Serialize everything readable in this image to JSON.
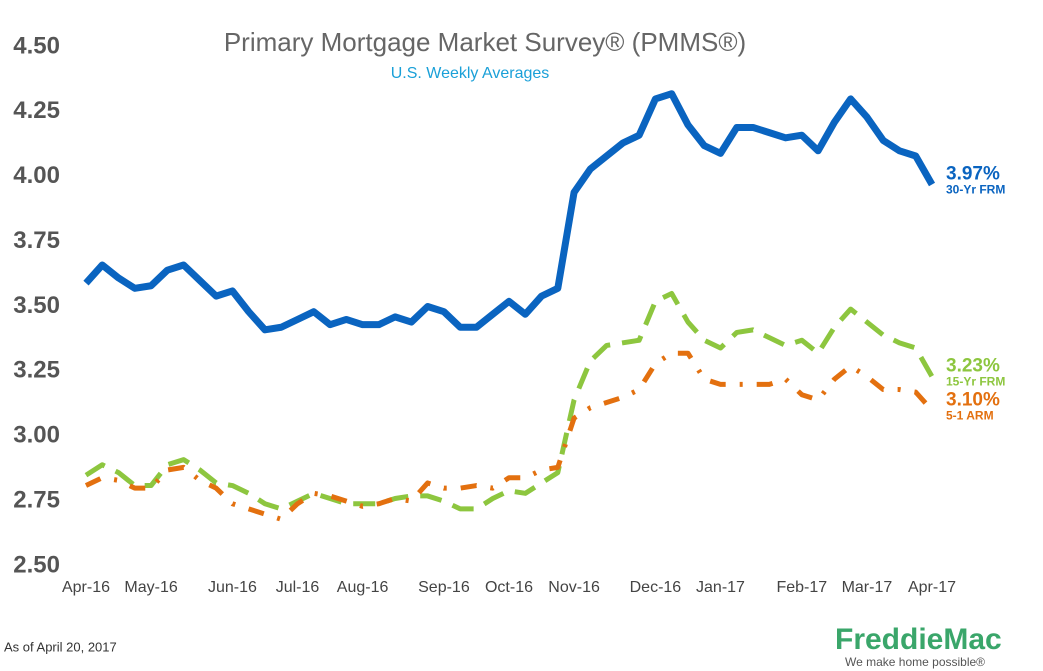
{
  "chart_data": {
    "type": "line",
    "title": "Primary Mortgage Market Survey® (PMMS®)",
    "subtitle": "U.S. Weekly Averages",
    "footnote": "As of April 20, 2017",
    "logo": "FreddieMac",
    "tagline": "We make home possible®",
    "categories": [
      "Apr-16",
      null,
      null,
      null,
      "May-16",
      null,
      null,
      null,
      null,
      "Jun-16",
      null,
      null,
      null,
      "Jul-16",
      null,
      null,
      null,
      "Aug-16",
      null,
      null,
      null,
      null,
      "Sep-16",
      null,
      null,
      null,
      "Oct-16",
      null,
      null,
      null,
      "Nov-16",
      null,
      null,
      null,
      null,
      "Dec-16",
      null,
      null,
      null,
      "Jan-17",
      null,
      null,
      null,
      null,
      "Feb-17",
      null,
      null,
      null,
      "Mar-17",
      null,
      null,
      null,
      "Apr-17"
    ],
    "ylim": [
      2.5,
      4.5
    ],
    "yticks": [
      {
        "value": 2.5,
        "label": "2.50"
      },
      {
        "value": 2.75,
        "label": "2.75"
      },
      {
        "value": 3,
        "label": "3.00"
      },
      {
        "value": 3.25,
        "label": "3.25"
      },
      {
        "value": 3.5,
        "label": "3.50"
      },
      {
        "value": 3.75,
        "label": "3.75"
      },
      {
        "value": 4,
        "label": "4.00"
      },
      {
        "value": 4.25,
        "label": "4.25"
      },
      {
        "value": 4.5,
        "label": "4.50"
      }
    ],
    "series": [
      {
        "name": "30-Yr FRM",
        "color": "#0a64c0",
        "style": "solid",
        "values": [
          3.59,
          3.66,
          3.61,
          3.57,
          3.58,
          3.64,
          3.66,
          3.6,
          3.54,
          3.56,
          3.48,
          3.41,
          3.42,
          3.45,
          3.48,
          3.43,
          3.45,
          3.43,
          3.43,
          3.46,
          3.44,
          3.5,
          3.48,
          3.42,
          3.42,
          3.47,
          3.52,
          3.47,
          3.54,
          3.57,
          3.94,
          4.03,
          4.08,
          4.13,
          4.16,
          4.3,
          4.32,
          4.2,
          4.12,
          4.09,
          4.19,
          4.19,
          4.17,
          4.15,
          4.16,
          4.1,
          4.21,
          4.3,
          4.23,
          4.14,
          4.1,
          4.08,
          3.97
        ],
        "value_labels": [
          null,
          null,
          null,
          null,
          null,
          null,
          null,
          null,
          null,
          null,
          null,
          null,
          null,
          null,
          null,
          null,
          null,
          null,
          null,
          null,
          null,
          null,
          null,
          null,
          null,
          null,
          null,
          null,
          null,
          null,
          null,
          null,
          null,
          null,
          null,
          null,
          null,
          null,
          null,
          null,
          null,
          null,
          null,
          null,
          null,
          null,
          null,
          null,
          null,
          null,
          null,
          null,
          "3.97%"
        ]
      },
      {
        "name": "15-Yr FRM",
        "color": "#8dc63f",
        "style": "dashed",
        "values": [
          2.85,
          2.89,
          2.86,
          2.81,
          2.81,
          2.89,
          2.91,
          2.87,
          2.82,
          2.81,
          2.78,
          2.74,
          2.72,
          2.75,
          2.78,
          2.76,
          2.74,
          2.74,
          2.74,
          2.76,
          2.77,
          2.77,
          2.75,
          2.72,
          2.72,
          2.76,
          2.79,
          2.78,
          2.82,
          2.86,
          3.14,
          3.29,
          3.35,
          3.36,
          3.37,
          3.52,
          3.55,
          3.44,
          3.37,
          3.34,
          3.4,
          3.41,
          3.38,
          3.35,
          3.37,
          3.32,
          3.42,
          3.49,
          3.44,
          3.39,
          3.36,
          3.34,
          3.23
        ],
        "value_labels": [
          null,
          null,
          null,
          null,
          null,
          null,
          null,
          null,
          null,
          null,
          null,
          null,
          null,
          null,
          null,
          null,
          null,
          null,
          null,
          null,
          null,
          null,
          null,
          null,
          null,
          null,
          null,
          null,
          null,
          null,
          null,
          null,
          null,
          null,
          null,
          null,
          null,
          null,
          null,
          null,
          null,
          null,
          null,
          null,
          null,
          null,
          null,
          null,
          null,
          null,
          null,
          null,
          "3.23%"
        ]
      },
      {
        "name": "5-1 ARM",
        "color": "#e3700f",
        "style": "dashdot",
        "values": [
          2.81,
          2.84,
          2.83,
          2.8,
          2.8,
          2.87,
          2.88,
          2.83,
          2.8,
          2.74,
          2.72,
          2.7,
          2.68,
          2.74,
          2.78,
          2.77,
          2.75,
          2.73,
          2.74,
          2.76,
          2.75,
          2.82,
          2.8,
          2.8,
          2.81,
          2.8,
          2.84,
          2.84,
          2.87,
          2.88,
          3.07,
          3.11,
          3.13,
          3.15,
          3.18,
          3.28,
          3.32,
          3.32,
          3.22,
          3.2,
          3.2,
          3.2,
          3.2,
          3.22,
          3.16,
          3.14,
          3.22,
          3.27,
          3.23,
          3.18,
          3.18,
          3.17,
          3.1
        ],
        "value_labels": [
          null,
          null,
          null,
          null,
          null,
          null,
          null,
          null,
          null,
          null,
          null,
          null,
          null,
          null,
          null,
          null,
          null,
          null,
          null,
          null,
          null,
          null,
          null,
          null,
          null,
          null,
          null,
          null,
          null,
          null,
          null,
          null,
          null,
          null,
          null,
          null,
          null,
          null,
          null,
          null,
          null,
          null,
          null,
          null,
          null,
          null,
          null,
          null,
          null,
          null,
          null,
          null,
          "3.10%"
        ]
      }
    ]
  }
}
